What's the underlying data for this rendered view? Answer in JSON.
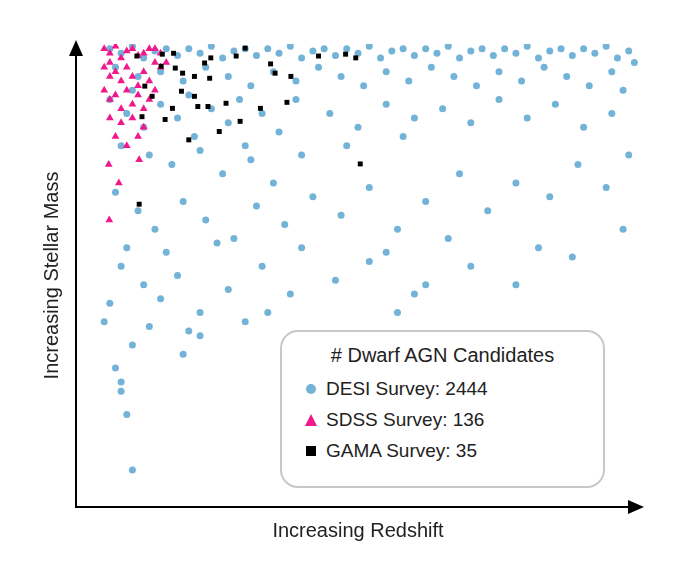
{
  "chart_data": {
    "type": "scatter",
    "xlabel": "Increasing Redshift",
    "ylabel": "Increasing Stellar Mass",
    "xlim": [
      0,
      100
    ],
    "ylim": [
      0,
      100
    ],
    "tick_labels": false,
    "grid": false,
    "legend": "lower right",
    "legend_title": "# Dwarf AGN Candidates",
    "series": [
      {
        "name": "DESI Survey: 2444",
        "color": "#74b3d8",
        "marker": "circle",
        "values": [
          [
            6,
            99
          ],
          [
            8,
            98
          ],
          [
            10,
            99.5
          ],
          [
            12,
            97
          ],
          [
            14,
            98.5
          ],
          [
            16,
            99
          ],
          [
            18,
            97.5
          ],
          [
            20,
            99
          ],
          [
            22,
            98
          ],
          [
            24,
            99.5
          ],
          [
            26,
            97
          ],
          [
            28,
            98.5
          ],
          [
            30,
            99
          ],
          [
            32,
            97.5
          ],
          [
            34,
            99
          ],
          [
            36,
            98
          ],
          [
            38,
            99.5
          ],
          [
            40,
            97
          ],
          [
            42,
            98.5
          ],
          [
            44,
            99
          ],
          [
            46,
            97.5
          ],
          [
            48,
            99
          ],
          [
            50,
            98
          ],
          [
            52,
            99.5
          ],
          [
            54,
            97
          ],
          [
            56,
            98.5
          ],
          [
            58,
            99
          ],
          [
            60,
            97.5
          ],
          [
            62,
            99
          ],
          [
            64,
            98
          ],
          [
            66,
            99.5
          ],
          [
            68,
            97
          ],
          [
            70,
            98.5
          ],
          [
            72,
            99
          ],
          [
            74,
            97.5
          ],
          [
            76,
            99
          ],
          [
            78,
            98
          ],
          [
            80,
            99.5
          ],
          [
            82,
            97
          ],
          [
            84,
            98.5
          ],
          [
            86,
            99
          ],
          [
            88,
            97.5
          ],
          [
            90,
            99
          ],
          [
            92,
            98
          ],
          [
            94,
            99.5
          ],
          [
            96,
            97
          ],
          [
            98,
            98.5
          ],
          [
            99,
            96
          ],
          [
            7,
            95
          ],
          [
            11,
            93
          ],
          [
            15,
            94
          ],
          [
            19,
            92
          ],
          [
            23,
            95
          ],
          [
            27,
            93
          ],
          [
            31,
            91
          ],
          [
            35,
            94
          ],
          [
            39,
            92
          ],
          [
            43,
            95
          ],
          [
            47,
            93
          ],
          [
            51,
            91
          ],
          [
            55,
            94
          ],
          [
            59,
            92
          ],
          [
            63,
            95
          ],
          [
            67,
            93
          ],
          [
            71,
            91
          ],
          [
            75,
            94
          ],
          [
            79,
            92
          ],
          [
            83,
            95
          ],
          [
            87,
            93
          ],
          [
            91,
            91
          ],
          [
            95,
            94
          ],
          [
            97,
            90
          ],
          [
            6,
            88
          ],
          [
            9,
            85
          ],
          [
            12,
            82
          ],
          [
            15,
            87
          ],
          [
            18,
            84
          ],
          [
            21,
            80
          ],
          [
            24,
            86
          ],
          [
            27,
            83
          ],
          [
            30,
            78
          ],
          [
            33,
            85
          ],
          [
            36,
            81
          ],
          [
            39,
            88
          ],
          [
            8,
            78
          ],
          [
            13,
            76
          ],
          [
            17,
            74
          ],
          [
            22,
            77
          ],
          [
            26,
            72
          ],
          [
            31,
            75
          ],
          [
            35,
            70
          ],
          [
            40,
            76
          ],
          [
            10,
            90
          ],
          [
            20,
            89
          ],
          [
            29,
            88
          ],
          [
            45,
            85
          ],
          [
            50,
            82
          ],
          [
            55,
            87
          ],
          [
            60,
            84
          ],
          [
            48,
            78
          ],
          [
            58,
            80
          ],
          [
            65,
            86
          ],
          [
            70,
            83
          ],
          [
            75,
            88
          ],
          [
            80,
            84
          ],
          [
            85,
            87
          ],
          [
            90,
            82
          ],
          [
            95,
            85
          ],
          [
            7,
            68
          ],
          [
            11,
            64
          ],
          [
            14,
            60
          ],
          [
            19,
            66
          ],
          [
            23,
            62
          ],
          [
            28,
            58
          ],
          [
            32,
            65
          ],
          [
            37,
            61
          ],
          [
            42,
            67
          ],
          [
            47,
            63
          ],
          [
            52,
            69
          ],
          [
            57,
            60
          ],
          [
            62,
            66
          ],
          [
            68,
            72
          ],
          [
            73,
            64
          ],
          [
            78,
            70
          ],
          [
            84,
            67
          ],
          [
            89,
            74
          ],
          [
            94,
            69
          ],
          [
            98,
            76
          ],
          [
            9,
            56
          ],
          [
            16,
            55
          ],
          [
            25,
            57
          ],
          [
            40,
            56
          ],
          [
            55,
            55
          ],
          [
            66,
            58
          ],
          [
            82,
            56
          ],
          [
            97,
            60
          ],
          [
            8,
            52
          ],
          [
            12,
            48
          ],
          [
            6,
            44
          ],
          [
            15,
            45
          ],
          [
            18,
            50
          ],
          [
            22,
            42
          ],
          [
            27,
            47
          ],
          [
            33,
            52
          ],
          [
            38,
            46
          ],
          [
            46,
            49
          ],
          [
            52,
            53
          ],
          [
            60,
            46
          ],
          [
            70,
            52
          ],
          [
            78,
            48
          ],
          [
            88,
            54
          ],
          [
            62,
            48
          ],
          [
            30,
            40
          ],
          [
            20,
            38
          ],
          [
            13,
            39
          ],
          [
            34,
            42
          ],
          [
            57,
            42
          ],
          [
            10,
            35
          ],
          [
            7,
            30
          ],
          [
            8,
            27
          ],
          [
            8,
            25
          ],
          [
            10,
            8
          ],
          [
            9,
            20
          ],
          [
            19,
            33
          ],
          [
            22,
            37
          ],
          [
            5,
            40
          ]
        ]
      },
      {
        "name": "SDSS Survey: 136",
        "color": "#f0198c",
        "marker": "triangle",
        "values": [
          [
            5,
            99
          ],
          [
            6,
            98
          ],
          [
            7,
            99.5
          ],
          [
            8,
            97
          ],
          [
            9,
            98.5
          ],
          [
            10,
            99
          ],
          [
            11,
            97.5
          ],
          [
            12,
            98
          ],
          [
            13,
            99
          ],
          [
            14,
            96
          ],
          [
            5,
            95
          ],
          [
            6,
            93
          ],
          [
            7,
            94
          ],
          [
            8,
            92
          ],
          [
            9,
            95
          ],
          [
            10,
            93
          ],
          [
            11,
            91
          ],
          [
            12,
            94
          ],
          [
            13,
            92
          ],
          [
            15,
            95
          ],
          [
            5,
            90
          ],
          [
            6,
            88
          ],
          [
            7,
            89
          ],
          [
            8,
            86
          ],
          [
            9,
            90
          ],
          [
            10,
            87
          ],
          [
            11,
            89
          ],
          [
            12,
            86
          ],
          [
            13,
            88
          ],
          [
            14,
            90
          ],
          [
            6,
            84
          ],
          [
            8,
            83
          ],
          [
            10,
            84
          ],
          [
            12,
            82
          ],
          [
            7,
            80
          ],
          [
            11,
            80
          ],
          [
            5.8,
            74
          ],
          [
            7.6,
            70
          ],
          [
            5.9,
            62
          ],
          [
            11.2,
            75
          ],
          [
            9,
            78
          ],
          [
            6,
            96
          ],
          [
            14,
            99
          ],
          [
            15,
            98
          ],
          [
            16,
            96
          ]
        ]
      },
      {
        "name": "GAMA Survey: 35",
        "color": "#000000",
        "marker": "square",
        "values": [
          [
            10.8,
            97.4
          ],
          [
            15.3,
            97.8
          ],
          [
            17.3,
            98
          ],
          [
            15.1,
            95.2
          ],
          [
            17.6,
            94.8
          ],
          [
            18.9,
            93.7
          ],
          [
            22.8,
            95.9
          ],
          [
            23.9,
            97
          ],
          [
            21,
            93
          ],
          [
            23.7,
            92.6
          ],
          [
            28.4,
            97.4
          ],
          [
            30,
            99.1
          ],
          [
            34.5,
            95.7
          ],
          [
            35.3,
            93.7
          ],
          [
            38.1,
            93
          ],
          [
            43,
            97.4
          ],
          [
            47.8,
            97.8
          ],
          [
            49.6,
            97
          ],
          [
            18.7,
            89.8
          ],
          [
            21.6,
            86.5
          ],
          [
            23.4,
            86.5
          ],
          [
            15.8,
            83.7
          ],
          [
            21,
            88.7
          ],
          [
            26.6,
            87.2
          ],
          [
            20,
            79.3
          ],
          [
            25.4,
            81.1
          ],
          [
            32.7,
            86.1
          ],
          [
            37.4,
            87.4
          ],
          [
            13.5,
            88.7
          ],
          [
            11.7,
            84.3
          ],
          [
            17.1,
            86.1
          ],
          [
            29.1,
            83.3
          ],
          [
            50.4,
            74.1
          ],
          [
            11.2,
            65.4
          ],
          [
            12.2,
            90.9
          ]
        ]
      }
    ]
  }
}
